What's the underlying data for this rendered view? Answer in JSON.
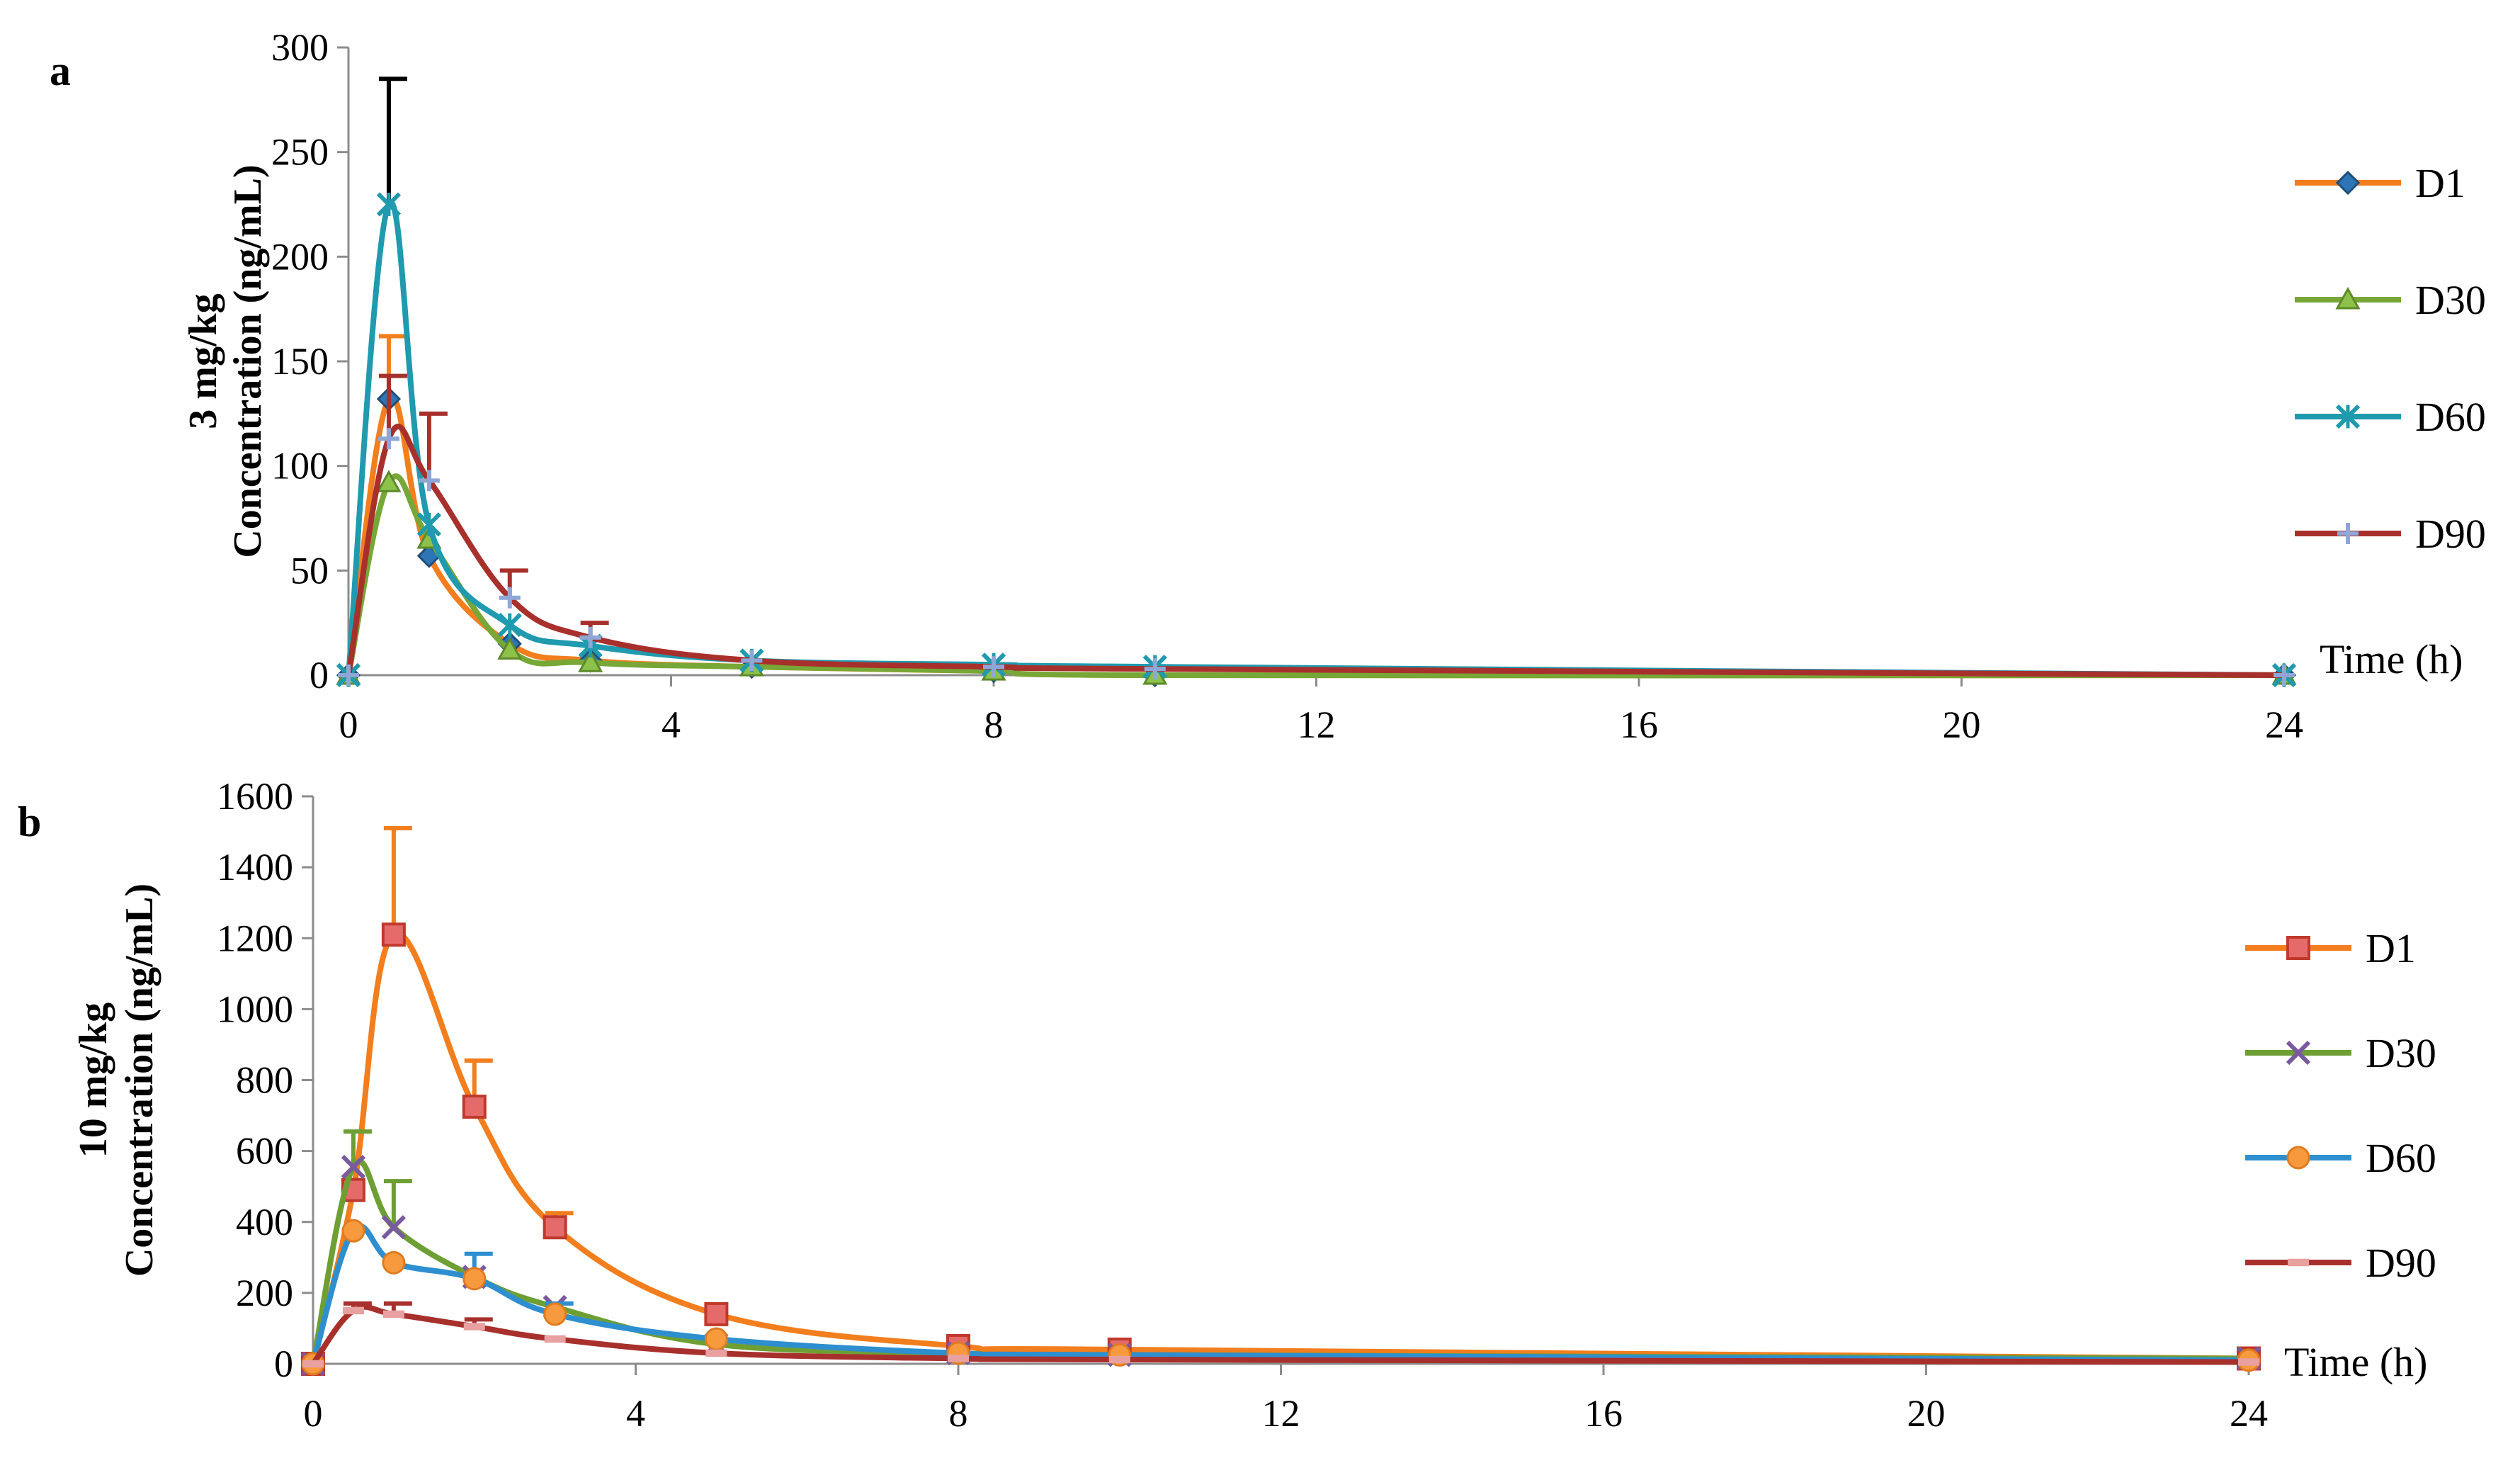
{
  "chart_data": [
    {
      "panel_label": "a",
      "type": "line",
      "ylabel": [
        "3 mg/kg",
        "Concentration (ng/mL)"
      ],
      "xlabel": "Time (h)",
      "ylim": [
        0,
        300
      ],
      "yticks": [
        0,
        50,
        100,
        150,
        200,
        250,
        300
      ],
      "xlim": [
        0,
        24
      ],
      "xticks": [
        0,
        4,
        8,
        12,
        16,
        20,
        24
      ],
      "legend_position": "right",
      "series": [
        {
          "name": "D1",
          "color": "#F27E1E",
          "marker": "diamond",
          "marker_color": "#2E75B6",
          "x": [
            0,
            0.5,
            1,
            2,
            3,
            5,
            8,
            10,
            24
          ],
          "y": [
            0,
            132,
            57,
            15,
            7,
            4,
            2,
            0,
            0
          ],
          "err": [
            0,
            30,
            0,
            0,
            0,
            0,
            0,
            0,
            0
          ]
        },
        {
          "name": "D30",
          "color": "#77A737",
          "marker": "triangle",
          "marker_color": "#8DC24A",
          "x": [
            0,
            0.5,
            1,
            2,
            3,
            5,
            8,
            10,
            24
          ],
          "y": [
            0,
            92,
            65,
            12,
            6,
            4,
            2,
            0,
            0
          ],
          "err": [
            0,
            0,
            0,
            0,
            0,
            0,
            0,
            0,
            0
          ]
        },
        {
          "name": "D60",
          "color": "#1F9AAE",
          "marker": "asterisk",
          "marker_color": "#1F9AAE",
          "x": [
            0,
            0.5,
            1,
            2,
            3,
            5,
            8,
            10,
            24
          ],
          "y": [
            0,
            225,
            72,
            24,
            14,
            7,
            5,
            4,
            0
          ],
          "err": [
            0,
            60,
            0,
            0,
            0,
            0,
            0,
            0,
            0
          ]
        },
        {
          "name": "D90",
          "color": "#A8302C",
          "marker": "plus",
          "marker_color": "#8FA7D6",
          "x": [
            0,
            0.5,
            1,
            2,
            3,
            5,
            8,
            10,
            24
          ],
          "y": [
            0,
            113,
            93,
            37,
            18,
            7,
            4,
            3,
            0
          ],
          "err": [
            0,
            30,
            32,
            13,
            7,
            0,
            0,
            0,
            0
          ]
        }
      ]
    },
    {
      "panel_label": "b",
      "type": "line",
      "ylabel": [
        "10 mg/kg",
        "Concentration (ng/mL)"
      ],
      "xlabel": "Time (h)",
      "ylim": [
        0,
        1600
      ],
      "yticks": [
        0,
        200,
        400,
        600,
        800,
        1000,
        1200,
        1400,
        1600
      ],
      "xlim": [
        0,
        24
      ],
      "xticks": [
        0,
        4,
        8,
        12,
        16,
        20,
        24
      ],
      "legend_position": "right",
      "series": [
        {
          "name": "D1",
          "color": "#F27E1E",
          "marker": "square",
          "marker_color": "#E56B6B",
          "x": [
            0,
            0.5,
            1,
            2,
            3,
            5,
            8,
            10,
            24
          ],
          "y": [
            0,
            490,
            1210,
            725,
            385,
            140,
            50,
            40,
            15
          ],
          "err": [
            0,
            0,
            300,
            130,
            40,
            0,
            0,
            0,
            0
          ]
        },
        {
          "name": "D30",
          "color": "#6E9F35",
          "marker": "x",
          "marker_color": "#7A5A9E",
          "x": [
            0,
            0.5,
            1,
            2,
            3,
            5,
            8,
            10,
            24
          ],
          "y": [
            0,
            555,
            385,
            245,
            160,
            55,
            30,
            25,
            15
          ],
          "err": [
            0,
            100,
            130,
            0,
            0,
            0,
            0,
            0,
            0
          ]
        },
        {
          "name": "D60",
          "color": "#2E8FD0",
          "marker": "circle",
          "marker_color": "#F79A3E",
          "x": [
            0,
            0.5,
            1,
            2,
            3,
            5,
            8,
            10,
            24
          ],
          "y": [
            0,
            375,
            285,
            240,
            140,
            70,
            30,
            25,
            10
          ],
          "err": [
            0,
            0,
            0,
            70,
            30,
            0,
            0,
            0,
            0
          ]
        },
        {
          "name": "D90",
          "color": "#A8302C",
          "marker": "dash",
          "marker_color": "#E8A0A0",
          "x": [
            0,
            0.5,
            1,
            2,
            3,
            5,
            8,
            10,
            24
          ],
          "y": [
            0,
            150,
            140,
            105,
            70,
            30,
            15,
            12,
            5
          ],
          "err": [
            0,
            20,
            30,
            20,
            0,
            0,
            0,
            0,
            0
          ]
        }
      ]
    }
  ]
}
